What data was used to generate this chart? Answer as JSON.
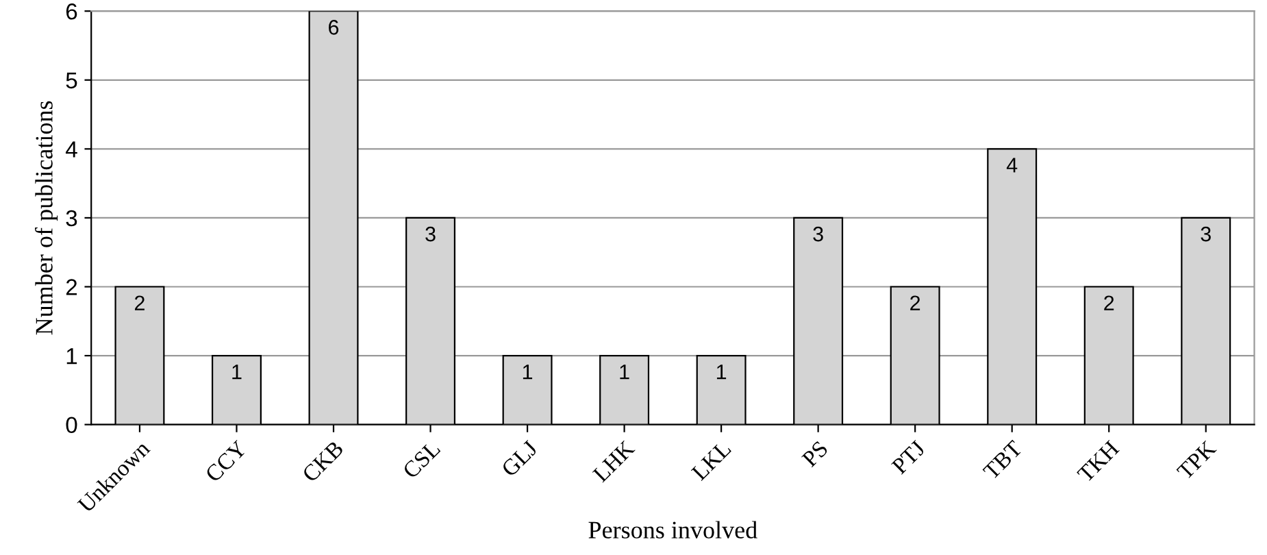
{
  "chart_data": {
    "type": "bar",
    "xlabel": "Persons involved",
    "ylabel": "Number of publications",
    "categories": [
      "Unknown",
      "CCY",
      "CKB",
      "CSL",
      "GLJ",
      "LHK",
      "LKL",
      "PS",
      "PTJ",
      "TBT",
      "TKH",
      "TPK"
    ],
    "values": [
      2,
      1,
      6,
      3,
      1,
      1,
      1,
      3,
      2,
      4,
      2,
      3
    ],
    "color": "#d4d4d4",
    "ylim": [
      0,
      6
    ],
    "yticks": [
      0,
      1,
      2,
      3,
      4,
      5,
      6
    ],
    "grid": "y",
    "data_labels": true
  }
}
